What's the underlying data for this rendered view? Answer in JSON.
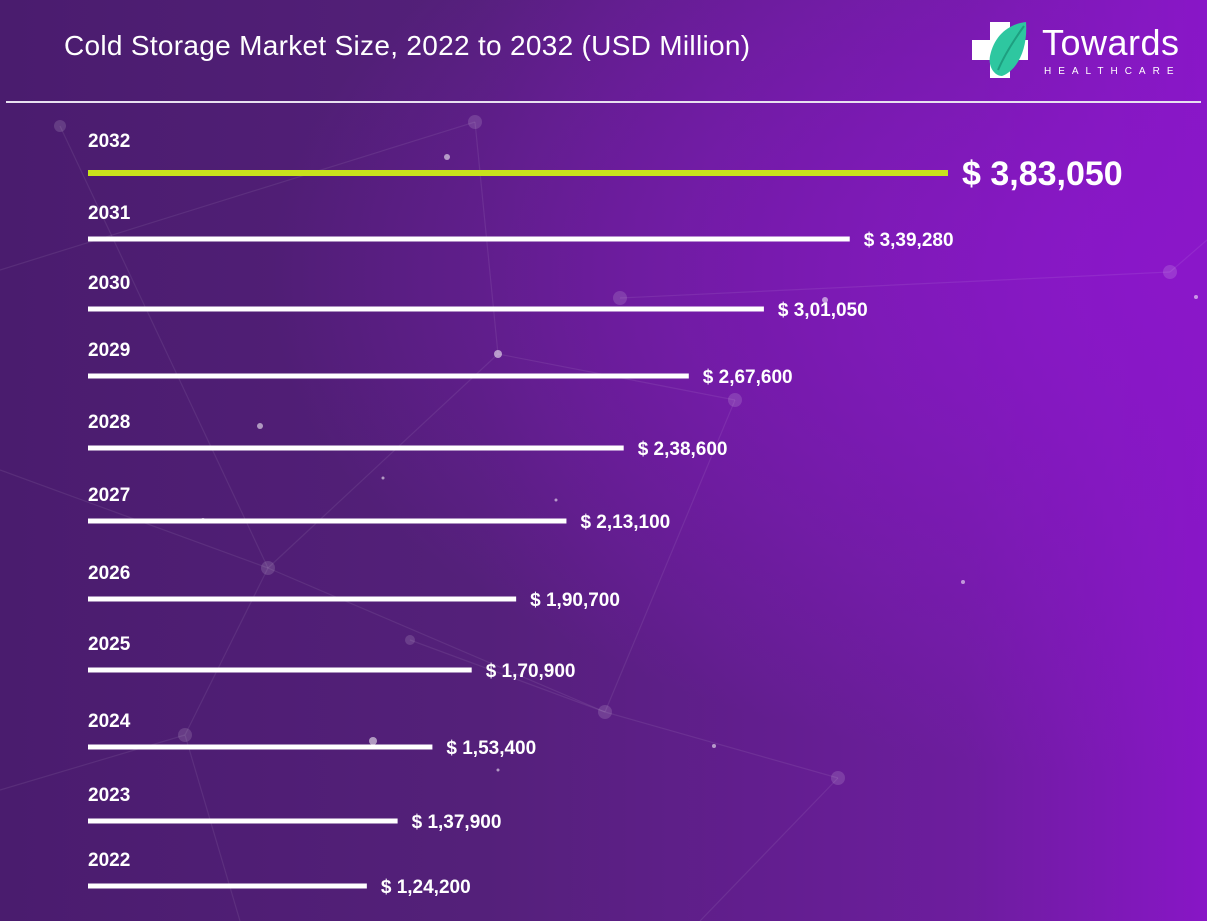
{
  "header": {
    "title": "Cold Storage Market Size, 2022 to 2032 (USD Million)"
  },
  "brand": {
    "name": "Towards",
    "tagline": "HEALTHCARE",
    "icon": "medical-cross-leaf-icon",
    "colors": {
      "cross": "#ffffff",
      "leaf": "#2ec7a0"
    }
  },
  "colors": {
    "bar": "#ffffff",
    "highlight_bar": "#c9e21c",
    "text": "#ffffff"
  },
  "chart_data": {
    "type": "bar",
    "orientation": "horizontal",
    "title": "Cold Storage Market Size, 2022 to 2032 (USD Million)",
    "categories": [
      "2032",
      "2031",
      "2030",
      "2029",
      "2028",
      "2027",
      "2026",
      "2025",
      "2024",
      "2023",
      "2022"
    ],
    "values": [
      383050,
      339280,
      301050,
      267600,
      238600,
      213100,
      190700,
      170900,
      153400,
      137900,
      124200
    ],
    "value_labels": [
      "$ 3,83,050",
      "$ 3,39,280",
      "$ 3,01,050",
      "$ 2,67,600",
      "$ 2,38,600",
      "$ 2,13,100",
      "$ 1,90,700",
      "$ 1,70,900",
      "$ 1,53,400",
      "$ 1,37,900",
      "$ 1,24,200"
    ],
    "highlight_category": "2032",
    "xlabel": "",
    "ylabel": "",
    "grid": false,
    "legend": "none"
  }
}
